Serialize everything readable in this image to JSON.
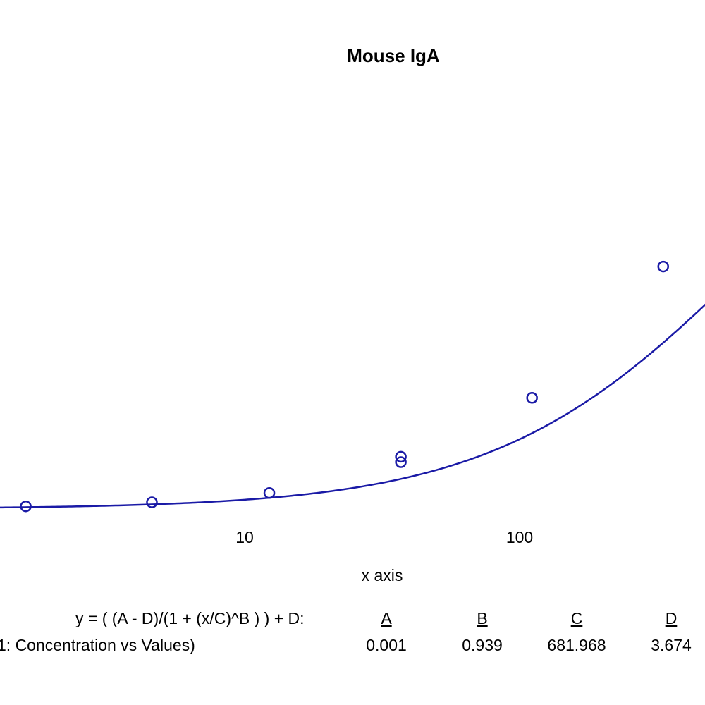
{
  "chart_data": {
    "type": "scatter",
    "title": "Mouse IgA",
    "xlabel": "x axis",
    "ylabel": "",
    "x_scale": "log",
    "x_ticks": [
      10,
      100
    ],
    "x_tick_labels": [
      "10",
      "100"
    ],
    "grid": false,
    "series": [
      {
        "x": [
          1.6,
          4.6,
          12.3,
          37,
          37,
          111,
          333
        ],
        "y": [
          0.02,
          0.05,
          0.12,
          0.35,
          0.39,
          0.83,
          1.81
        ]
      }
    ],
    "fit": {
      "equation": "y = ( (A - D)/(1 + (x/C)^B ) ) + D:",
      "param_names": [
        "A",
        "B",
        "C",
        "D"
      ],
      "param_values": [
        "0.001",
        "0.939",
        "681.968",
        "3.674"
      ],
      "A": 0.001,
      "B": 0.939,
      "C": 681.968,
      "D": 3.674
    },
    "legend_entry": "1: Concentration vs Values)",
    "color": "#1a1aa6"
  }
}
